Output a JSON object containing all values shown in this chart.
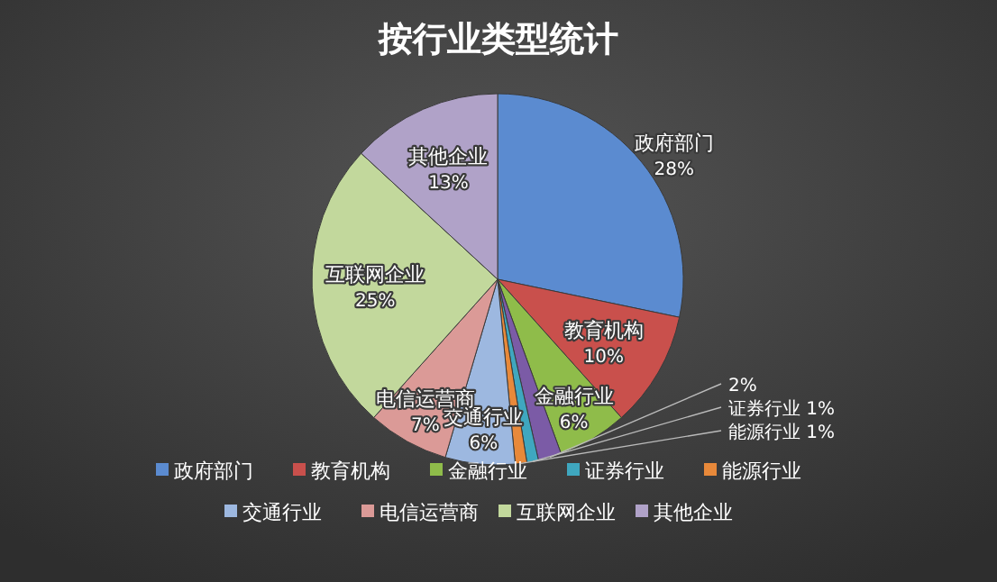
{
  "chart_data": {
    "type": "pie",
    "title": "按行业类型统计",
    "categories": [
      "政府部门",
      "教育机构",
      "金融行业",
      null,
      "证券行业",
      "能源行业",
      "交通行业",
      "电信运营商",
      "互联网企业",
      "其他企业"
    ],
    "values": [
      28,
      10,
      6,
      2,
      1,
      1,
      6,
      7,
      25,
      13
    ],
    "colors": [
      "#5b8bd0",
      "#c9504c",
      "#8fbc4a",
      "#7b5ba6",
      "#3fa7bf",
      "#e8893a",
      "#9db8e0",
      "#db9a97",
      "#c2d89c",
      "#b0a2c8"
    ],
    "value_labels": [
      "28%",
      "10%",
      "6%",
      "2%",
      "1%",
      "1%",
      "6%",
      "7%",
      "25%",
      "13%"
    ],
    "legend": "bottom"
  }
}
